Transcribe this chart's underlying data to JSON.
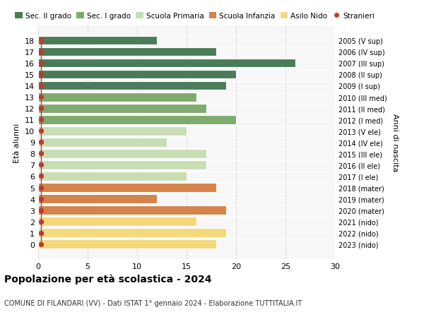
{
  "ages": [
    18,
    17,
    16,
    15,
    14,
    13,
    12,
    11,
    10,
    9,
    8,
    7,
    6,
    5,
    4,
    3,
    2,
    1,
    0
  ],
  "values": [
    12,
    18,
    26,
    20,
    19,
    16,
    17,
    20,
    15,
    13,
    17,
    17,
    15,
    18,
    12,
    19,
    16,
    19,
    18
  ],
  "right_labels": [
    "2005 (V sup)",
    "2006 (IV sup)",
    "2007 (III sup)",
    "2008 (II sup)",
    "2009 (I sup)",
    "2010 (III med)",
    "2011 (II med)",
    "2012 (I med)",
    "2013 (V ele)",
    "2014 (IV ele)",
    "2015 (III ele)",
    "2016 (II ele)",
    "2017 (I ele)",
    "2018 (mater)",
    "2019 (mater)",
    "2020 (mater)",
    "2021 (nido)",
    "2022 (nido)",
    "2023 (nido)"
  ],
  "bar_colors": [
    "#4a7c59",
    "#4a7c59",
    "#4a7c59",
    "#4a7c59",
    "#4a7c59",
    "#7faa6e",
    "#7faa6e",
    "#7faa6e",
    "#c8ddb4",
    "#c8ddb4",
    "#c8ddb4",
    "#c8ddb4",
    "#c8ddb4",
    "#d4834a",
    "#d4834a",
    "#d4834a",
    "#f5d87a",
    "#f5d87a",
    "#f5d87a"
  ],
  "legend_labels": [
    "Sec. II grado",
    "Sec. I grado",
    "Scuola Primaria",
    "Scuola Infanzia",
    "Asilo Nido",
    "Stranieri"
  ],
  "legend_colors": [
    "#4a7c59",
    "#7faa6e",
    "#c8ddb4",
    "#d4834a",
    "#f5d87a",
    "#c0392b"
  ],
  "stranieri_color": "#c0392b",
  "ylabel": "Età alunni",
  "right_ylabel": "Anni di nascita",
  "title": "Popolazione per età scolastica - 2024",
  "subtitle": "COMUNE DI FILANDARI (VV) - Dati ISTAT 1° gennaio 2024 - Elaborazione TUTTITALIA.IT",
  "xlim": [
    0,
    30
  ],
  "xticks": [
    0,
    5,
    10,
    15,
    20,
    25,
    30
  ],
  "bg_color": "#f7f7f7",
  "grid_color": "#cccccc"
}
